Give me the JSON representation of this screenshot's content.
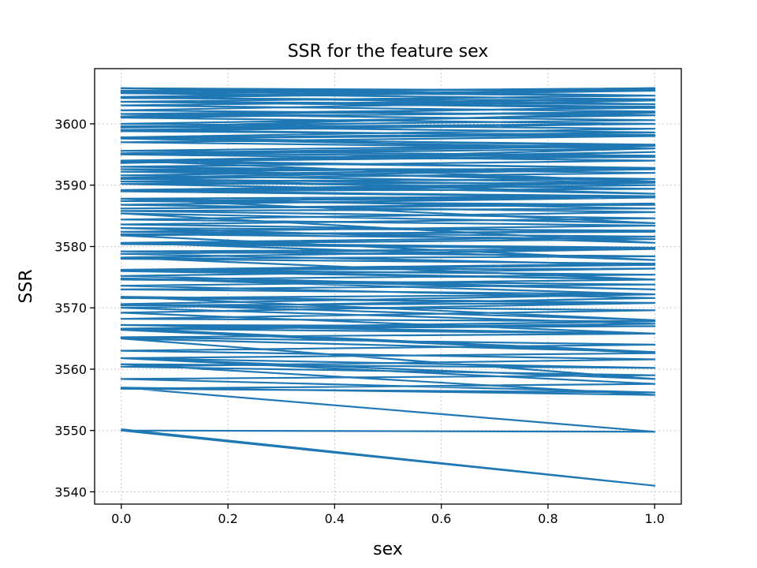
{
  "chart_data": {
    "type": "line",
    "title": "SSR for the feature sex",
    "xlabel": "sex",
    "ylabel": "SSR",
    "xlim": [
      -0.05,
      1.05
    ],
    "ylim": [
      3538,
      3609
    ],
    "xticks": [
      0.0,
      0.2,
      0.4,
      0.6,
      0.8,
      1.0
    ],
    "xtick_labels": [
      "0.0",
      "0.2",
      "0.4",
      "0.6",
      "0.8",
      "1.0"
    ],
    "yticks": [
      3540,
      3550,
      3560,
      3570,
      3580,
      3590,
      3600
    ],
    "ytick_labels": [
      "3540",
      "3550",
      "3560",
      "3570",
      "3580",
      "3590",
      "3600"
    ],
    "grid": true,
    "series": [
      {
        "color": "#1f77b4",
        "x": [
          0,
          1,
          0,
          1,
          0,
          1,
          0,
          1,
          0,
          1,
          0,
          1,
          0,
          1,
          0,
          1,
          0,
          1,
          0,
          1,
          0,
          1,
          0,
          1,
          0,
          1,
          0,
          1,
          0,
          1,
          0,
          1,
          0,
          1,
          0,
          1,
          0,
          1,
          0,
          1,
          0,
          1,
          0,
          1,
          0,
          1,
          0,
          1,
          0,
          1,
          0,
          1,
          0,
          1,
          0,
          1,
          0,
          1,
          0,
          1,
          0,
          1,
          0,
          1,
          0,
          1,
          0,
          1,
          0,
          1,
          0,
          1,
          0,
          1,
          0,
          1,
          0,
          1,
          0,
          1,
          0,
          1,
          0,
          1,
          0,
          1,
          0,
          1,
          0,
          1,
          0,
          1,
          0,
          1,
          0,
          1,
          0,
          1,
          0,
          1,
          0,
          1,
          0,
          1,
          0,
          1,
          0,
          1,
          0,
          1,
          0,
          1,
          0,
          1,
          0,
          1,
          0,
          1,
          0,
          1,
          0,
          1,
          0,
          1,
          0,
          1,
          0,
          1,
          0,
          1,
          0,
          1,
          0,
          1,
          0,
          1,
          0,
          1,
          0,
          1,
          0,
          1,
          0,
          1,
          0,
          1,
          0,
          1,
          0,
          1,
          0,
          1,
          0,
          1,
          0,
          1,
          0,
          1,
          0,
          1,
          0,
          1,
          0,
          1,
          0,
          1,
          0,
          1,
          0,
          1,
          0,
          1,
          0,
          1,
          0,
          1,
          0,
          1,
          0,
          1,
          0,
          1,
          0,
          1
        ],
        "y": [
          3550.2,
          3541.0,
          3550.0,
          3549.8,
          3557.0,
          3555.8,
          3560.8,
          3560.2,
          3561.8,
          3558.4,
          3565.0,
          3562.8,
          3566.6,
          3567.0,
          3567.2,
          3565.8,
          3569.2,
          3570.8,
          3571.8,
          3568.0,
          3570.6,
          3572.2,
          3574.8,
          3573.0,
          3575.2,
          3576.4,
          3576.2,
          3574.6,
          3578.2,
          3579.6,
          3580.6,
          3577.8,
          3581.8,
          3582.6,
          3583.0,
          3580.6,
          3585.4,
          3583.8,
          3587.8,
          3588.2,
          3589.0,
          3590.4,
          3590.2,
          3588.6,
          3591.2,
          3592.6,
          3592.6,
          3590.6,
          3594.0,
          3595.4,
          3593.6,
          3596.0,
          3597.6,
          3598.2,
          3598.8,
          3600.0,
          3599.4,
          3601.8,
          3601.2,
          3602.8,
          3603.6,
          3603.2,
          3604.4,
          3605.6,
          3605.4,
          3604.6,
          3605.8,
          3605.4,
          3604.2,
          3603.8,
          3602.2,
          3601.4,
          3600.0,
          3599.2,
          3597.8,
          3596.4,
          3595.2,
          3594.6,
          3594.0,
          3592.8,
          3592.2,
          3591.0,
          3590.6,
          3589.4,
          3589.0,
          3588.0,
          3587.8,
          3586.2,
          3585.8,
          3584.6,
          3583.6,
          3582.4,
          3582.0,
          3581.2,
          3580.4,
          3579.6,
          3579.2,
          3578.4,
          3578.0,
          3577.2,
          3576.2,
          3575.4,
          3574.6,
          3573.8,
          3573.0,
          3572.2,
          3571.6,
          3570.8,
          3570.4,
          3569.6,
          3568.2,
          3567.8,
          3566.6,
          3565.8,
          3565.2,
          3564.0,
          3563.0,
          3561.6,
          3560.4,
          3559.0,
          3558.4,
          3556.2,
          3556.8,
          3557.6,
          3561.8,
          3562.6,
          3566.4,
          3567.4,
          3570.0,
          3571.6,
          3573.6,
          3574.6,
          3576.0,
          3577.0,
          3578.8,
          3579.8,
          3580.6,
          3581.6,
          3582.4,
          3583.4,
          3584.4,
          3585.6,
          3586.8,
          3588.0,
          3589.2,
          3590.4,
          3591.6,
          3592.8,
          3593.8,
          3594.8,
          3595.6,
          3596.6,
          3597.6,
          3598.6,
          3599.6,
          3600.6,
          3601.6,
          3602.6,
          3603.6,
          3604.6,
          3605.2,
          3605.8,
          3605.0,
          3604.0,
          3603.0,
          3602.0,
          3601.0,
          3600.0,
          3599.0,
          3598.0,
          3597.0,
          3596.0,
          3595.0,
          3594.0,
          3593.0,
          3592.0,
          3591.0,
          3590.0,
          3589.0,
          3588.0,
          3587.4,
          3586.8,
          3586.2,
          3587.0
        ]
      }
    ]
  }
}
